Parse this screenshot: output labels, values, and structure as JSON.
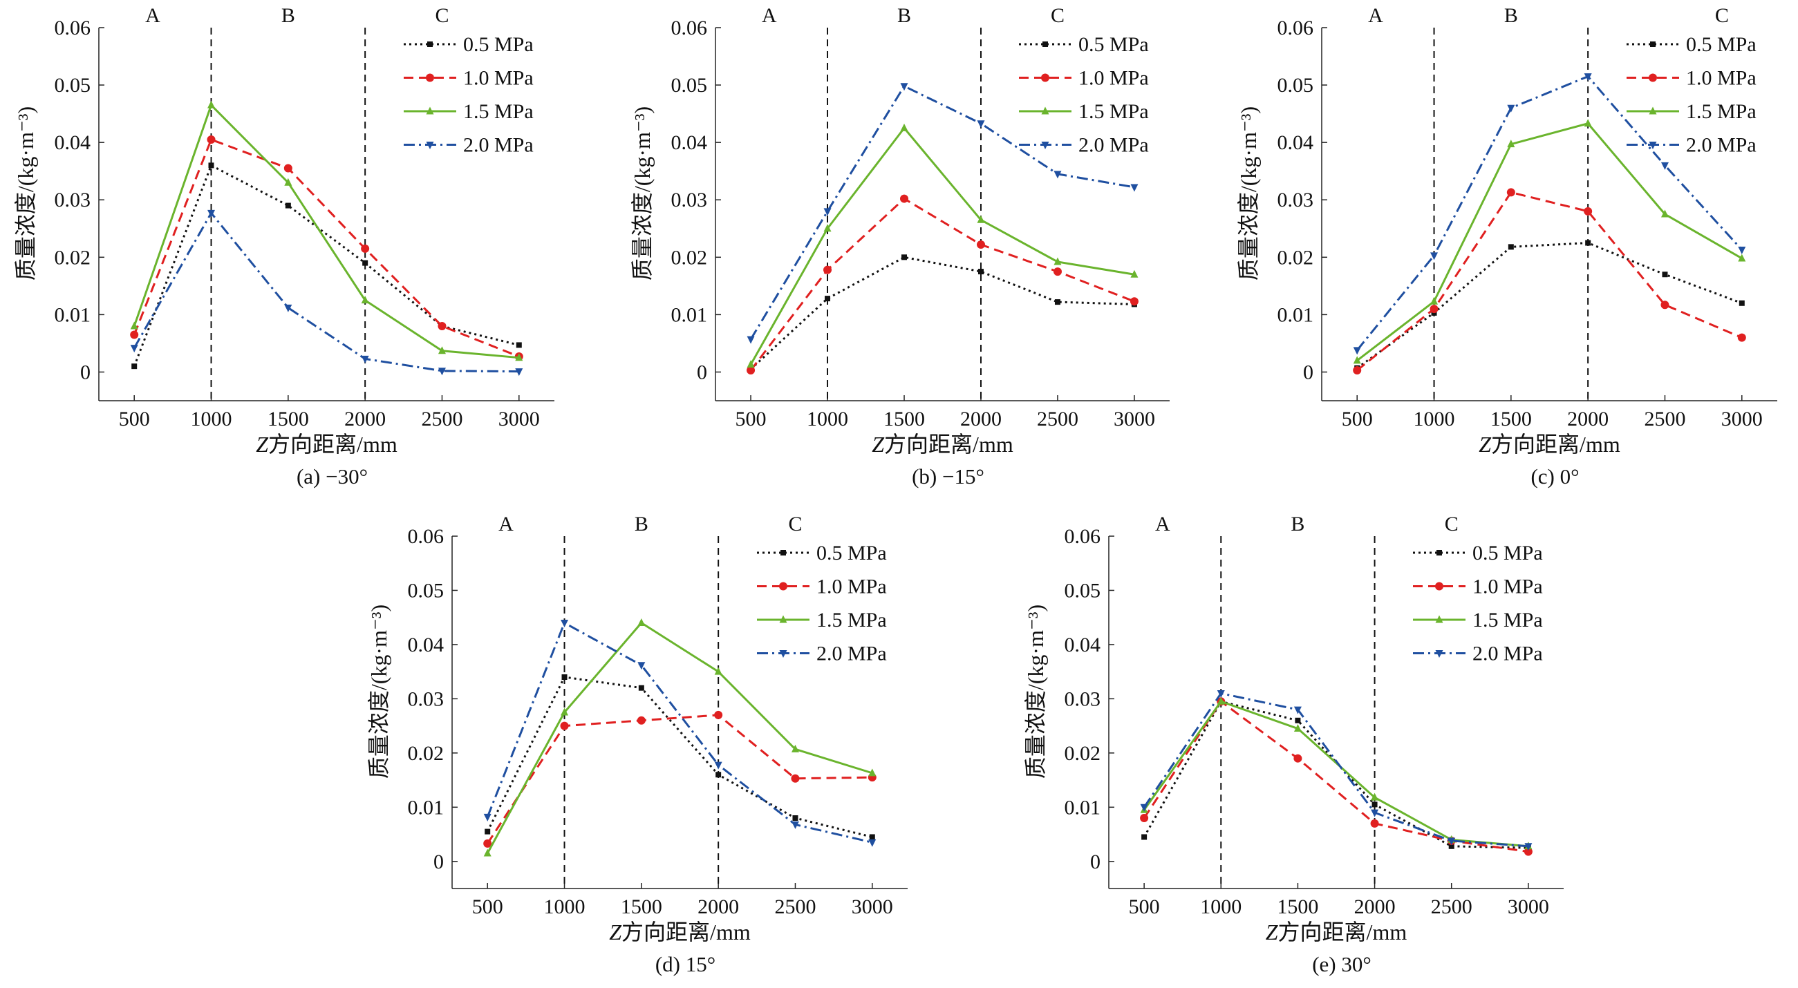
{
  "chart_data": [
    {
      "type": "line",
      "caption": "(a) −30°",
      "xlabel_italic": "Z",
      "xlabel_rest": "方向距离/mm",
      "ylabel": "质量浓度/(kg·m⁻³)",
      "x": [
        500,
        1000,
        1500,
        2000,
        2500,
        3000
      ],
      "xlim": [
        270,
        3230
      ],
      "ylim": [
        -0.005,
        0.06
      ],
      "yticks": [
        0,
        0.01,
        0.02,
        0.03,
        0.04,
        0.05,
        0.06
      ],
      "ytick_labels": [
        "0",
        "0.01",
        "0.02",
        "0.03",
        "0.04",
        "0.05",
        "0.06"
      ],
      "vlines": [
        1000,
        2000
      ],
      "regions": [
        {
          "label": "A",
          "x": 620
        },
        {
          "label": "B",
          "x": 1500
        },
        {
          "label": "C",
          "x": 2500
        }
      ],
      "legend_position": "top-right",
      "series": [
        {
          "name": "0.5 MPa",
          "values": [
            0.001,
            0.036,
            0.029,
            0.019,
            0.008,
            0.0047
          ]
        },
        {
          "name": "1.0 MPa",
          "values": [
            0.0065,
            0.0405,
            0.0355,
            0.0215,
            0.008,
            0.0027
          ]
        },
        {
          "name": "1.5 MPa",
          "values": [
            0.008,
            0.0465,
            0.033,
            0.0125,
            0.0037,
            0.0025
          ]
        },
        {
          "name": "2.0 MPa",
          "values": [
            0.0042,
            0.0277,
            0.0112,
            0.0023,
            0.0002,
            0.0001
          ]
        }
      ]
    },
    {
      "type": "line",
      "caption": "(b) −15°",
      "xlabel_italic": "Z",
      "xlabel_rest": "方向距离/mm",
      "ylabel": "质量浓度/(kg·m⁻³)",
      "x": [
        500,
        1000,
        1500,
        2000,
        2500,
        3000
      ],
      "xlim": [
        270,
        3230
      ],
      "ylim": [
        -0.005,
        0.06
      ],
      "yticks": [
        0,
        0.01,
        0.02,
        0.03,
        0.04,
        0.05,
        0.06
      ],
      "ytick_labels": [
        "0",
        "0.01",
        "0.02",
        "0.03",
        "0.04",
        "0.05",
        "0.06"
      ],
      "vlines": [
        1000,
        2000
      ],
      "regions": [
        {
          "label": "A",
          "x": 620
        },
        {
          "label": "B",
          "x": 1500
        },
        {
          "label": "C",
          "x": 2500
        }
      ],
      "legend_position": "top-right",
      "series": [
        {
          "name": "0.5 MPa",
          "values": [
            0.0005,
            0.0128,
            0.02,
            0.0175,
            0.0122,
            0.0118
          ]
        },
        {
          "name": "1.0 MPa",
          "values": [
            0.0003,
            0.0178,
            0.0302,
            0.0222,
            0.0175,
            0.0123
          ]
        },
        {
          "name": "1.5 MPa",
          "values": [
            0.0013,
            0.025,
            0.0425,
            0.0265,
            0.0192,
            0.017
          ]
        },
        {
          "name": "2.0 MPa",
          "values": [
            0.0057,
            0.028,
            0.0498,
            0.0433,
            0.0345,
            0.0322
          ]
        }
      ]
    },
    {
      "type": "line",
      "caption": "(c) 0°",
      "xlabel_italic": "Z",
      "xlabel_rest": "方向距离/mm",
      "ylabel": "质量浓度/(kg·m⁻³)",
      "x": [
        500,
        1000,
        1500,
        2000,
        2500,
        3000
      ],
      "xlim": [
        270,
        3230
      ],
      "ylim": [
        -0.005,
        0.06
      ],
      "yticks": [
        0,
        0.01,
        0.02,
        0.03,
        0.04,
        0.05,
        0.06
      ],
      "ytick_labels": [
        "0",
        "0.01",
        "0.02",
        "0.03",
        "0.04",
        "0.05",
        "0.06"
      ],
      "vlines": [
        1000,
        2000
      ],
      "regions": [
        {
          "label": "A",
          "x": 620
        },
        {
          "label": "B",
          "x": 1500
        },
        {
          "label": "C",
          "x": 2870
        }
      ],
      "legend_position": "top-right",
      "series": [
        {
          "name": "0.5 MPa",
          "values": [
            0.0007,
            0.0103,
            0.0218,
            0.0225,
            0.017,
            0.012
          ]
        },
        {
          "name": "1.0 MPa",
          "values": [
            0.0003,
            0.011,
            0.0313,
            0.028,
            0.0117,
            0.006
          ]
        },
        {
          "name": "1.5 MPa",
          "values": [
            0.002,
            0.0123,
            0.0397,
            0.0433,
            0.0275,
            0.0198
          ]
        },
        {
          "name": "2.0 MPa",
          "values": [
            0.0038,
            0.0203,
            0.046,
            0.0515,
            0.036,
            0.0213
          ]
        }
      ]
    },
    {
      "type": "line",
      "caption": "(d) 15°",
      "xlabel_italic": "Z",
      "xlabel_rest": "方向距离/mm",
      "ylabel": "质量浓度/(kg·m⁻³)",
      "x": [
        500,
        1000,
        1500,
        2000,
        2500,
        3000
      ],
      "xlim": [
        270,
        3230
      ],
      "ylim": [
        -0.005,
        0.06
      ],
      "yticks": [
        0,
        0.01,
        0.02,
        0.03,
        0.04,
        0.05,
        0.06
      ],
      "ytick_labels": [
        "0",
        "0.01",
        "0.02",
        "0.03",
        "0.04",
        "0.05",
        "0.06"
      ],
      "vlines": [
        1000,
        2000
      ],
      "regions": [
        {
          "label": "A",
          "x": 620
        },
        {
          "label": "B",
          "x": 1500
        },
        {
          "label": "C",
          "x": 2500
        }
      ],
      "legend_position": "top-right",
      "series": [
        {
          "name": "0.5 MPa",
          "values": [
            0.0055,
            0.034,
            0.032,
            0.016,
            0.008,
            0.0045
          ]
        },
        {
          "name": "1.0 MPa",
          "values": [
            0.0033,
            0.025,
            0.026,
            0.027,
            0.0153,
            0.0155
          ]
        },
        {
          "name": "1.5 MPa",
          "values": [
            0.0015,
            0.0275,
            0.044,
            0.035,
            0.0207,
            0.0163
          ]
        },
        {
          "name": "2.0 MPa",
          "values": [
            0.0082,
            0.044,
            0.0362,
            0.0178,
            0.0068,
            0.0035
          ]
        }
      ]
    },
    {
      "type": "line",
      "caption": "(e) 30°",
      "xlabel_italic": "Z",
      "xlabel_rest": "方向距离/mm",
      "ylabel": "质量浓度/(kg·m⁻³)",
      "x": [
        500,
        1000,
        1500,
        2000,
        2500,
        3000
      ],
      "xlim": [
        270,
        3230
      ],
      "ylim": [
        -0.005,
        0.06
      ],
      "yticks": [
        0,
        0.01,
        0.02,
        0.03,
        0.04,
        0.05,
        0.06
      ],
      "ytick_labels": [
        "0",
        "0.01",
        "0.02",
        "0.03",
        "0.04",
        "0.05",
        "0.06"
      ],
      "vlines": [
        1000,
        2000
      ],
      "regions": [
        {
          "label": "A",
          "x": 620
        },
        {
          "label": "B",
          "x": 1500
        },
        {
          "label": "C",
          "x": 2500
        }
      ],
      "legend_position": "top-right",
      "series": [
        {
          "name": "0.5 MPa",
          "values": [
            0.0045,
            0.0295,
            0.026,
            0.0105,
            0.0028,
            0.0025
          ]
        },
        {
          "name": "1.0 MPa",
          "values": [
            0.008,
            0.0295,
            0.019,
            0.007,
            0.0038,
            0.0018
          ]
        },
        {
          "name": "1.5 MPa",
          "values": [
            0.0095,
            0.0295,
            0.0245,
            0.0118,
            0.004,
            0.0028
          ]
        },
        {
          "name": "2.0 MPa",
          "values": [
            0.01,
            0.031,
            0.028,
            0.009,
            0.0038,
            0.0028
          ]
        }
      ]
    }
  ],
  "series_styles": [
    {
      "color": "#111111",
      "dash": "3,5",
      "marker": "square"
    },
    {
      "color": "#e02020",
      "dash": "14,8",
      "marker": "circle"
    },
    {
      "color": "#6ab42d",
      "dash": "",
      "marker": "triangle-up"
    },
    {
      "color": "#1f4fa0",
      "dash": "16,6,3,6",
      "marker": "triangle-down"
    }
  ]
}
